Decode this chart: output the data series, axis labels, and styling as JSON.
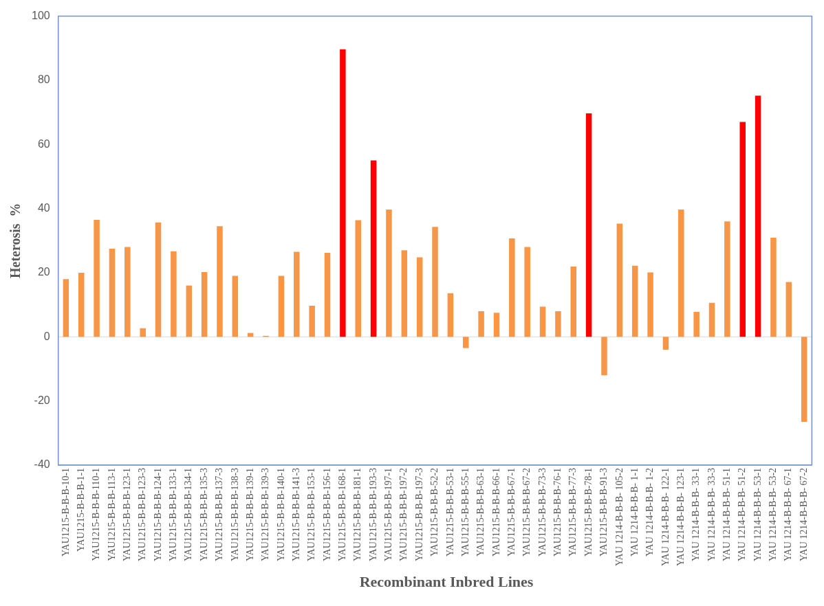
{
  "chart_data": {
    "type": "bar",
    "xlabel": "Recombinant Inbred Lines",
    "ylabel": "Heterosis  %",
    "categories": [
      "YAU1215-B-B-B-10-1",
      "YAU1215-B-B-B-1-1",
      "YAU1215-B-B-B-110-1",
      "YAU1215-B-B-B-113-1",
      "YAU1215-B-B-B-123-1",
      "YAU1215-B-B-B-123-3",
      "YAU1215-B-B-B-124-1",
      "YAU1215-B-B-B-133-1",
      "YAU1215-B-B-B-134-1",
      "YAU1215-B-B-B-135-3",
      "YAU1215-B-B-B-137-3",
      "YAU1215-B-B-B-138-3",
      "YAU1215-B-B-B-139-1",
      "YAU1215-B-B-B-139-3",
      "YAU1215-B-B-B-140-1",
      "YAU1215-B-B-B-141-3",
      "YAU1215-B-B-B-153-1",
      "YAU1215-B-B-B-156-1",
      "YAU1215-B-B-B-168-1",
      "YAU1215-B-B-B-181-1",
      "YAU1215-B-B-B-193-3",
      "YAU1215-B-B-B-197-1",
      "YAU1215-B-B-B-197-2",
      "YAU1215-B-B-B-197-3",
      "YAU1215-B-B-B-52-2",
      "YAU1215-B-B-B-53-1",
      "YAU1215-B-B-B-55-1",
      "YAU1215-B-B-B-63-1",
      "YAU1215-B-B-B-66-1",
      "YAU1215-B-B-B-67-1",
      "YAU1215-B-B-B-67-2",
      "YAU1215-B-B-B-73-3",
      "YAU1215-B-B-B-76-1",
      "YAU1215-B-B-B-77-3",
      "YAU1215-B-B-B-78-1",
      "YAU1215-B-B-B-91-3",
      "YAU 1214-B-B-B- 105-2",
      "YAU 1214-B-B-B- 1-1",
      "YAU 1214-B-B-B- 1-2",
      "YAU 1214-B-B-B- 122-1",
      "YAU 1214-B-B-B- 123-1",
      "YAU 1214-B-B-B- 33-1",
      "YAU 1214-B-B-B- 33-3",
      "YAU 1214-B-B-B- 51-1",
      "YAU 1214-B-B-B- 51-2",
      "YAU 1214-B-B-B- 53-1",
      "YAU 1214-B-B-B- 53-2",
      "YAU 1214-B-B-B- 67-1",
      "YAU 1214-B-B-B- 67-2"
    ],
    "values": [
      18,
      20,
      36.5,
      27.5,
      28,
      2.7,
      35.7,
      26.7,
      16,
      20.2,
      34.5,
      19,
      1.2,
      0.3,
      19,
      26.5,
      9.7,
      26.2,
      89.7,
      36.4,
      55,
      39.7,
      27,
      24.8,
      34.3,
      13.6,
      -3.5,
      8,
      7.5,
      30.7,
      28,
      9.4,
      8,
      21.9,
      69.7,
      -12,
      35.3,
      22.2,
      20.1,
      -4,
      39.7,
      7.8,
      10.6,
      36,
      67,
      75.2,
      30.9,
      17.1,
      -26.5
    ],
    "colors": [
      "#f79646",
      "#f79646",
      "#f79646",
      "#f79646",
      "#f79646",
      "#f79646",
      "#f79646",
      "#f79646",
      "#f79646",
      "#f79646",
      "#f79646",
      "#f79646",
      "#f79646",
      "#f79646",
      "#f79646",
      "#f79646",
      "#f79646",
      "#f79646",
      "#ff0000",
      "#f79646",
      "#ff0000",
      "#f79646",
      "#f79646",
      "#f79646",
      "#f79646",
      "#f79646",
      "#f79646",
      "#f79646",
      "#f79646",
      "#f79646",
      "#f79646",
      "#f79646",
      "#f79646",
      "#f79646",
      "#ff0000",
      "#f79646",
      "#f79646",
      "#f79646",
      "#f79646",
      "#f79646",
      "#f79646",
      "#f79646",
      "#f79646",
      "#f79646",
      "#ff0000",
      "#ff0000",
      "#f79646",
      "#f79646",
      "#f79646"
    ],
    "ylim": [
      -40,
      100
    ],
    "yticks": [
      -40,
      -20,
      0,
      20,
      40,
      60,
      80,
      100
    ],
    "ref_lines": [
      {
        "axis": "y",
        "value": 0,
        "color": "#d9d9d9"
      }
    ],
    "grid": false,
    "legend": false
  }
}
